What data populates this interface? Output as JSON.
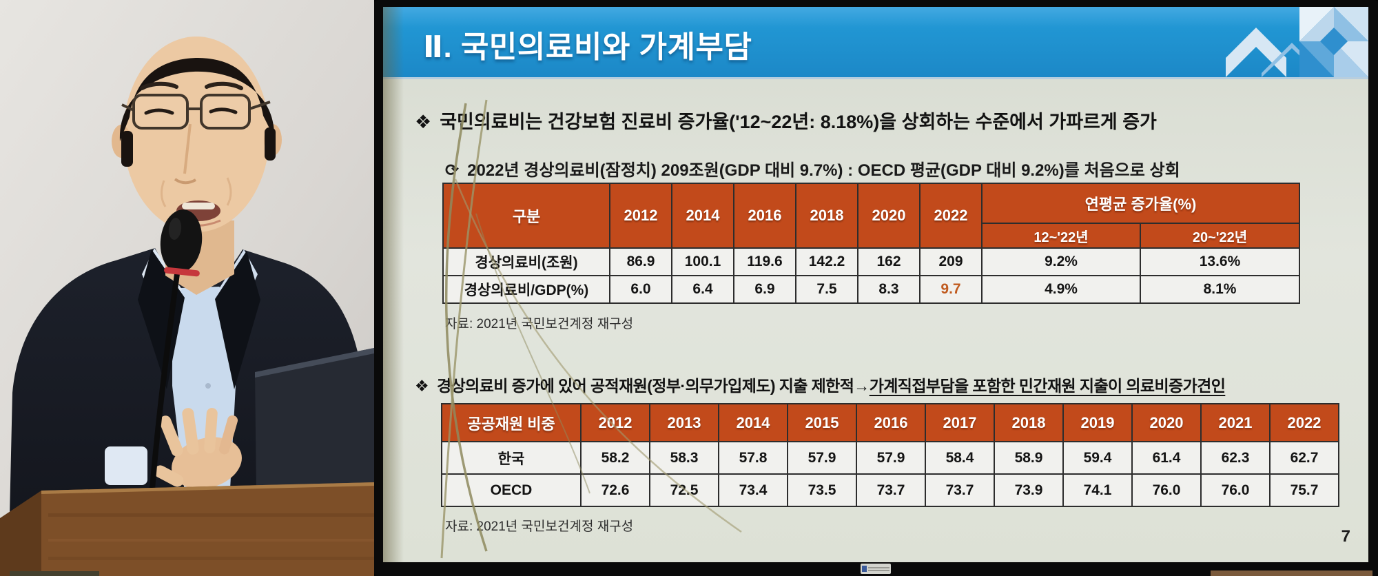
{
  "slide": {
    "title": "Ⅱ. 국민의료비와 가계부담",
    "bullet1": {
      "marker": "❖",
      "text": "국민의료비는 건강보험 진료비 증가율('12~22년: 8.18%)을 상회하는 수준에서 가파르게 증가"
    },
    "sub_bullet": {
      "marker": "⟳",
      "prefix": "2022년 경상의료비(잠정치) 209조원(GDP 대비 9.7%) : ",
      "emphasis": "OECD 평균(GDP 대비 9.2%)를 처음으로 상회"
    },
    "table1": {
      "row_header_label": "구분",
      "years": [
        "2012",
        "2014",
        "2016",
        "2018",
        "2020",
        "2022"
      ],
      "col_group_label": "연평균 증가율(%)",
      "sub_columns": [
        "12~'22년",
        "20~'22년"
      ],
      "rows": [
        {
          "label": "경상의료비(조원)",
          "values": [
            "86.9",
            "100.1",
            "119.6",
            "142.2",
            "162",
            "209"
          ],
          "avg": [
            "9.2%",
            "13.6%"
          ]
        },
        {
          "label": "경상의료비/GDP(%)",
          "values": [
            "6.0",
            "6.4",
            "6.9",
            "7.5",
            "8.3",
            "9.7"
          ],
          "avg": [
            "4.9%",
            "8.1%"
          ],
          "highlight_col": 5
        }
      ]
    },
    "source1": "자료: 2021년 국민보건계정 재구성",
    "bullet2": {
      "marker": "❖",
      "prefix": "경상의료비 증가에 있어 공적재원(정부·의무가입제도) 지출 제한적→",
      "underlined": "가계직접부담을 포함한 민간재원 지출이 의료비증가견인"
    },
    "table2": {
      "row_header_label": "공공재원 비중",
      "years": [
        "2012",
        "2013",
        "2014",
        "2015",
        "2016",
        "2017",
        "2018",
        "2019",
        "2020",
        "2021",
        "2022"
      ],
      "rows": [
        {
          "label": "한국",
          "values": [
            "58.2",
            "58.3",
            "57.8",
            "57.9",
            "57.9",
            "58.4",
            "58.9",
            "59.4",
            "61.4",
            "62.3",
            "62.7"
          ]
        },
        {
          "label": "OECD",
          "values": [
            "72.6",
            "72.5",
            "73.4",
            "73.5",
            "73.7",
            "73.7",
            "73.9",
            "74.1",
            "76.0",
            "76.0",
            "75.7"
          ]
        }
      ]
    },
    "source2": "자료: 2021년 국민보건계정 재구성",
    "page_number": "7"
  },
  "icons": {
    "diamond_bullet": "❖",
    "curved_arrow_bullet": "⟳"
  },
  "colors": {
    "header_blue": "#2196d3",
    "table_header_orange": "#c24a1b",
    "highlight_orange": "#c05a1e",
    "slide_background": "#dde1d6",
    "deco_blues": [
      "#e8f2f9",
      "#bcd7ec",
      "#8fc0e4",
      "#5fa8da",
      "#2f8fce"
    ]
  }
}
